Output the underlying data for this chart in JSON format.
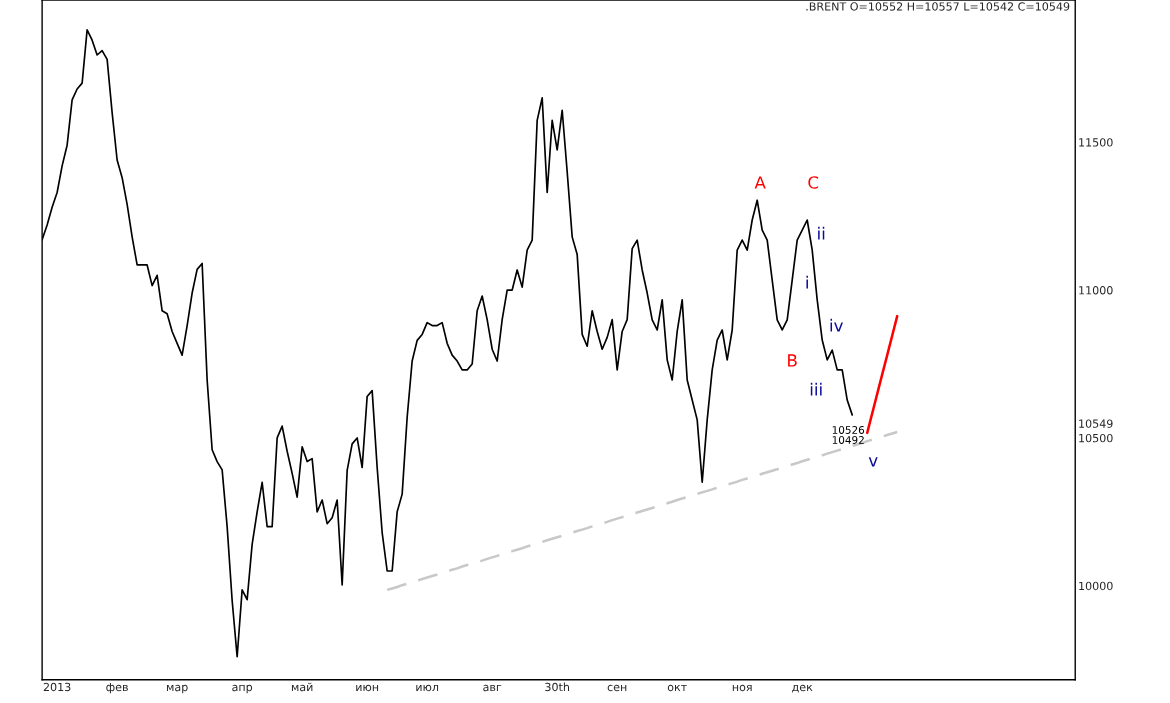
{
  "chart_data": {
    "type": "line",
    "title": ".BRENT O=10552 H=10557 L=10542 C=10549",
    "categories": [
      null,
      null,
      null,
      "2013",
      null,
      null,
      null,
      null,
      null,
      null,
      null,
      null,
      null,
      null,
      null,
      "фев",
      null,
      null,
      null,
      null,
      null,
      null,
      null,
      null,
      null,
      null,
      null,
      "мар",
      null,
      null,
      null,
      null,
      null,
      null,
      null,
      null,
      null,
      null,
      null,
      null,
      "апр",
      null,
      null,
      null,
      null,
      null,
      null,
      null,
      null,
      null,
      null,
      null,
      "май",
      null,
      null,
      null,
      null,
      null,
      null,
      null,
      null,
      null,
      null,
      null,
      null,
      "июн",
      null,
      null,
      null,
      null,
      null,
      null,
      null,
      null,
      null,
      null,
      null,
      "июл",
      null,
      null,
      null,
      null,
      null,
      null,
      null,
      null,
      null,
      null,
      null,
      null,
      "авг",
      null,
      null,
      null,
      null,
      null,
      null,
      null,
      null,
      null,
      null,
      null,
      null,
      "30th",
      null,
      null,
      null,
      null,
      null,
      null,
      null,
      null,
      null,
      null,
      null,
      "сен",
      null,
      null,
      null,
      null,
      null,
      null,
      null,
      null,
      null,
      null,
      null,
      "окт",
      null,
      null,
      null,
      null,
      null,
      null,
      null,
      null,
      null,
      null,
      null,
      null,
      "ноя",
      null,
      null,
      null,
      null,
      null,
      null,
      null,
      null,
      null,
      null,
      null,
      "дек",
      null,
      null,
      null,
      null,
      null,
      null,
      null,
      null,
      null,
      null,
      null,
      null,
      null,
      null,
      null,
      null,
      null,
      null,
      null,
      null,
      null,
      null,
      null,
      null,
      null,
      null,
      null,
      null,
      null,
      null,
      null,
      null,
      null,
      null,
      null,
      null,
      null,
      null,
      null,
      null,
      null,
      null,
      null,
      null,
      null,
      null,
      null,
      null,
      null,
      null,
      null,
      null,
      null,
      null
    ],
    "ylim": [
      9682,
      11981
    ],
    "yticks": [
      10000,
      10500,
      10549,
      11000,
      11500
    ],
    "grid": false,
    "line_style": "solid",
    "series": [
      {
        "color": "#000000",
        "values": [
          11170,
          11220,
          11280,
          11330,
          11420,
          11490,
          11643,
          11680,
          11700,
          11880,
          11845,
          11795,
          11810,
          11780,
          11600,
          11440,
          11380,
          11290,
          11180,
          11085,
          11085,
          11085,
          11015,
          11050,
          10930,
          10920,
          10860,
          10820,
          10780,
          10880,
          10990,
          11070,
          11090,
          10696,
          10460,
          10420,
          10392,
          10200,
          9950,
          9760,
          9986,
          9953,
          10140,
          10250,
          10350,
          10200,
          10200,
          10500,
          10540,
          10455,
          10380,
          10300,
          10470,
          10420,
          10430,
          10250,
          10290,
          10210,
          10230,
          10290,
          10003,
          10390,
          10480,
          10500,
          10400,
          10640,
          10660,
          10400,
          10180,
          10050,
          10050,
          10250,
          10310,
          10570,
          10760,
          10830,
          10850,
          10890,
          10880,
          10880,
          10890,
          10820,
          10780,
          10760,
          10730,
          10730,
          10750,
          10930,
          10980,
          10900,
          10800,
          10760,
          10900,
          11000,
          11000,
          11068,
          11010,
          11135,
          11169,
          11574,
          11650,
          11330,
          11574,
          11474,
          11608,
          11400,
          11180,
          11120,
          10850,
          10810,
          10930,
          10860,
          10800,
          10840,
          10900,
          10730,
          10860,
          10900,
          11140,
          11169,
          11068,
          10990,
          10899,
          10865,
          10967,
          10764,
          10696,
          10860,
          10967,
          10696,
          10628,
          10561,
          10350,
          10561,
          10730,
          10831,
          10865,
          10764,
          10865,
          11135,
          11169,
          11135,
          11237,
          11304,
          11203,
          11169,
          11034,
          10899,
          10865,
          10899,
          11034,
          11169,
          11203,
          11237,
          11135,
          10967,
          10831,
          10764,
          10797,
          10730,
          10730,
          10628,
          10578,
          null,
          null,
          null,
          null,
          null,
          null,
          null,
          null,
          null,
          null,
          null,
          null,
          null,
          null,
          null,
          null,
          null,
          null,
          null,
          null,
          null,
          null,
          null,
          null,
          null,
          null,
          null,
          null,
          null,
          null,
          null,
          null,
          null,
          null,
          null,
          null,
          null,
          null,
          null,
          null,
          null,
          null,
          null,
          null
        ]
      },
      {
        "type": "line",
        "color": "#c8c8c8",
        "line_style": "dashed",
        "values": [
          null,
          null,
          null,
          null,
          null,
          null,
          null,
          null,
          null,
          null,
          null,
          null,
          null,
          null,
          null,
          null,
          null,
          null,
          null,
          null,
          null,
          null,
          null,
          null,
          null,
          null,
          null,
          null,
          null,
          null,
          null,
          null,
          null,
          null,
          null,
          null,
          null,
          null,
          null,
          null,
          null,
          null,
          null,
          null,
          null,
          null,
          null,
          null,
          null,
          null,
          null,
          null,
          null,
          null,
          null,
          null,
          null,
          null,
          null,
          null,
          null,
          null,
          null,
          null,
          null,
          null,
          null,
          null,
          null,
          9986,
          9991,
          9996,
          10002,
          10007,
          10012,
          10017,
          10023,
          10028,
          10033,
          10038,
          10044,
          10049,
          10054,
          10059,
          10065,
          10070,
          10075,
          10080,
          10085,
          10091,
          10096,
          10101,
          10106,
          10112,
          10117,
          10122,
          10127,
          10133,
          10138,
          10143,
          10148,
          10154,
          10159,
          10164,
          10169,
          10174,
          10180,
          10185,
          10190,
          10195,
          10201,
          10206,
          10211,
          10216,
          10222,
          10227,
          10232,
          10237,
          10243,
          10248,
          10253,
          10258,
          10263,
          10269,
          10274,
          10279,
          10284,
          10290,
          10295,
          10300,
          10305,
          10311,
          10316,
          10321,
          10326,
          10332,
          10337,
          10342,
          10347,
          10352,
          10358,
          10363,
          10368,
          10373,
          10379,
          10384,
          10389,
          10394,
          10400,
          10405,
          10410,
          10415,
          10421,
          10426,
          10431,
          10436,
          10441,
          10447,
          10452,
          10457,
          10462,
          10468,
          10473,
          10478,
          10483,
          10489,
          10494,
          10499,
          10504,
          10510,
          10515,
          10520,
          null,
          null,
          null,
          null,
          null,
          null,
          null,
          null,
          null,
          null,
          null,
          null,
          null,
          null,
          null,
          null,
          null,
          null,
          null,
          null,
          null,
          null,
          null,
          null,
          null,
          null,
          null,
          null,
          null,
          null,
          null,
          null,
          null,
          null,
          null
        ]
      },
      {
        "type": "line",
        "color": "#ff0000",
        "values": [
          null,
          null,
          null,
          null,
          null,
          null,
          null,
          null,
          null,
          null,
          null,
          null,
          null,
          null,
          null,
          null,
          null,
          null,
          null,
          null,
          null,
          null,
          null,
          null,
          null,
          null,
          null,
          null,
          null,
          null,
          null,
          null,
          null,
          null,
          null,
          null,
          null,
          null,
          null,
          null,
          null,
          null,
          null,
          null,
          null,
          null,
          null,
          null,
          null,
          null,
          null,
          null,
          null,
          null,
          null,
          null,
          null,
          null,
          null,
          null,
          null,
          null,
          null,
          null,
          null,
          null,
          null,
          null,
          null,
          null,
          null,
          null,
          null,
          null,
          null,
          null,
          null,
          null,
          null,
          null,
          null,
          null,
          null,
          null,
          null,
          null,
          null,
          null,
          null,
          null,
          null,
          null,
          null,
          null,
          null,
          null,
          null,
          null,
          null,
          null,
          null,
          null,
          null,
          null,
          null,
          null,
          null,
          null,
          null,
          null,
          null,
          null,
          null,
          null,
          null,
          null,
          null,
          null,
          null,
          null,
          null,
          null,
          null,
          null,
          null,
          null,
          null,
          null,
          null,
          null,
          null,
          null,
          null,
          null,
          null,
          null,
          null,
          null,
          null,
          null,
          null,
          null,
          null,
          null,
          null,
          null,
          null,
          null,
          null,
          null,
          null,
          null,
          null,
          null,
          null,
          null,
          null,
          null,
          null,
          null,
          null,
          null,
          null,
          null,
          null,
          10517,
          10583,
          10649,
          10715,
          10780,
          10846,
          10912,
          null,
          null,
          null,
          null,
          null,
          null,
          null,
          null,
          null,
          null,
          null,
          null,
          null,
          null,
          null,
          null,
          null,
          null,
          null,
          null,
          null,
          null,
          null,
          null,
          null,
          null,
          null,
          null,
          null,
          null,
          null,
          null,
          null,
          null,
          null
        ]
      }
    ],
    "annotations": [
      "A",
      "C",
      "B",
      "ii",
      "i",
      "iv",
      "iii",
      "v",
      "10526",
      "10492"
    ]
  }
}
